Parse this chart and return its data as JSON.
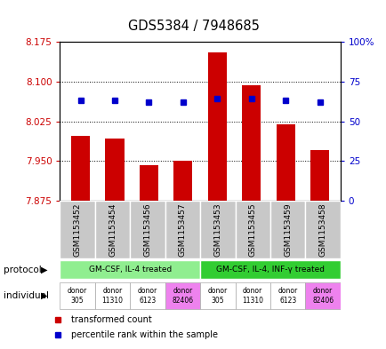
{
  "title": "GDS5384 / 7948685",
  "samples": [
    "GSM1153452",
    "GSM1153454",
    "GSM1153456",
    "GSM1153457",
    "GSM1153453",
    "GSM1153455",
    "GSM1153459",
    "GSM1153458"
  ],
  "bar_values": [
    7.998,
    7.993,
    7.942,
    7.95,
    8.155,
    8.093,
    8.02,
    7.97
  ],
  "dot_values": [
    8.065,
    8.065,
    8.062,
    8.062,
    8.068,
    8.068,
    8.065,
    8.062
  ],
  "bar_base": 7.875,
  "ylim": [
    7.875,
    8.175
  ],
  "y2lim": [
    0,
    100
  ],
  "yticks": [
    7.875,
    7.95,
    8.025,
    8.1,
    8.175
  ],
  "y2ticks": [
    0,
    25,
    50,
    75,
    100
  ],
  "y2ticklabels": [
    "0",
    "25",
    "50",
    "75",
    "100%"
  ],
  "bar_color": "#cc0000",
  "dot_color": "#0000cc",
  "protocol_groups": [
    {
      "label": "GM-CSF, IL-4 treated",
      "start": 0,
      "end": 3,
      "color": "#90ee90"
    },
    {
      "label": "GM-CSF, IL-4, INF-γ treated",
      "start": 4,
      "end": 7,
      "color": "#32cd32"
    }
  ],
  "individuals": [
    {
      "label": "donor\n305",
      "color": "#ffffff"
    },
    {
      "label": "donor\n11310",
      "color": "#ffffff"
    },
    {
      "label": "donor\n6123",
      "color": "#ffffff"
    },
    {
      "label": "donor\n82406",
      "color": "#ee82ee"
    },
    {
      "label": "donor\n305",
      "color": "#ffffff"
    },
    {
      "label": "donor\n11310",
      "color": "#ffffff"
    },
    {
      "label": "donor\n6123",
      "color": "#ffffff"
    },
    {
      "label": "donor\n82406",
      "color": "#ee82ee"
    }
  ],
  "legend_items": [
    {
      "label": "transformed count",
      "color": "#cc0000"
    },
    {
      "label": "percentile rank within the sample",
      "color": "#0000cc"
    }
  ]
}
